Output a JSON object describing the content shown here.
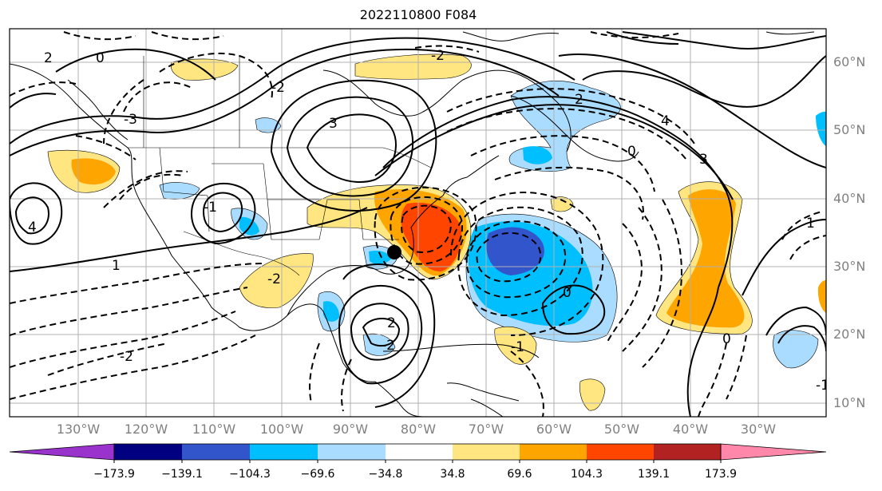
{
  "title": "2022110800 F084",
  "lat_labels": [
    "60°N",
    "50°N",
    "40°N",
    "30°N",
    "20°N",
    "10°N"
  ],
  "lon_labels": [
    "130°W",
    "120°W",
    "110°W",
    "100°W",
    "90°W",
    "80°W",
    "70°W",
    "60°W",
    "50°W",
    "40°W",
    "30°W"
  ],
  "colorbar": {
    "labels": [
      "−173.9",
      "−139.1",
      "−104.3",
      "−69.6",
      "−34.8",
      "34.8",
      "69.6",
      "104.3",
      "139.1",
      "173.9"
    ],
    "colors": [
      "#9933cc",
      "#000080",
      "#3355cc",
      "#00bfff",
      "#aadcff",
      "#ffffff",
      "#ffe680",
      "#ffa500",
      "#ff4500",
      "#b22222",
      "#ff88aa"
    ]
  },
  "contour_labels": [
    "2",
    "0",
    "-2",
    "3",
    "-3",
    "4",
    "-1",
    "1",
    "-2",
    "0",
    "2",
    "-2",
    "-1",
    "0",
    "-1",
    "-2",
    "0",
    "3",
    "4",
    "2",
    "-2",
    "1"
  ],
  "marker": {
    "type": "filled-circle",
    "color": "#000000"
  }
}
